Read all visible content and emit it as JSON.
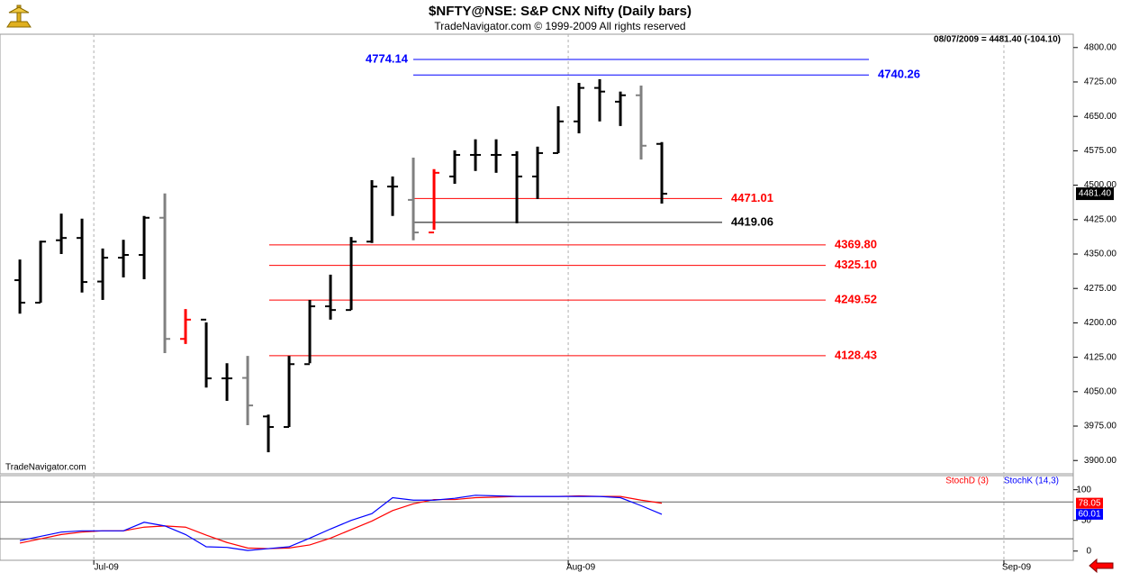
{
  "chart_data": [
    {
      "type": "ohlc",
      "title": "$NFTY@NSE:  S&P CNX Nifty  (Daily bars)",
      "subtitle": "TradeNavigator.com © 1999-2009 All rights reserved",
      "header": "08/07/2009 = 4481.40 (-104.10)",
      "watermark": "TradeNavigator.com",
      "categories": [
        null,
        null,
        null,
        null,
        null,
        null,
        null,
        null,
        null,
        null,
        null,
        null,
        null,
        null,
        null,
        null,
        null,
        null,
        null,
        null,
        null,
        null,
        null,
        null,
        null,
        null,
        null,
        null,
        null,
        null,
        null,
        null
      ],
      "open": [
        4293,
        4244,
        4380,
        4385,
        4290,
        4342,
        4348,
        4429,
        4165,
        4207,
        4079,
        4080,
        3996,
        3973,
        4110,
        4236,
        4228,
        4377,
        4497,
        4468,
        4397,
        4519,
        4566,
        4566,
        4566,
        4519,
        4570,
        4639,
        4712,
        4682,
        4696,
        4590
      ],
      "high": [
        4338,
        4379,
        4438,
        4427,
        4362,
        4381,
        4433,
        4482,
        4230,
        4201,
        4112,
        4128,
        4000,
        4128,
        4250,
        4305,
        4387,
        4511,
        4519,
        4560,
        4535,
        4576,
        4600,
        4600,
        4574,
        4584,
        4672,
        4723,
        4731,
        4704,
        4717,
        4594
      ],
      "low": [
        4220,
        4244,
        4350,
        4266,
        4250,
        4299,
        4295,
        4134,
        4154,
        4059,
        4030,
        3977,
        3918,
        3973,
        4112,
        4207,
        4228,
        4374,
        4433,
        4380,
        4403,
        4503,
        4531,
        4527,
        4417,
        4470,
        4570,
        4613,
        4639,
        4629,
        4556,
        4460
      ],
      "close": [
        4244,
        4377,
        4385,
        4289,
        4342,
        4348,
        4429,
        4165,
        4207,
        4079,
        4079,
        4020,
        3973,
        4110,
        4236,
        4228,
        4377,
        4497,
        4497,
        4397,
        4527,
        4566,
        4566,
        4566,
        4519,
        4570,
        4639,
        4712,
        4704,
        4696,
        4586,
        4481.4
      ],
      "bar_colors": [
        "#000000",
        "#000000",
        "#000000",
        "#000000",
        "#000000",
        "#000000",
        "#000000",
        "#808080",
        "#ff0000",
        "#000000",
        "#000000",
        "#808080",
        "#000000",
        "#000000",
        "#000000",
        "#000000",
        "#000000",
        "#000000",
        "#000000",
        "#808080",
        "#ff0000",
        "#000000",
        "#000000",
        "#000000",
        "#000000",
        "#000000",
        "#000000",
        "#000000",
        "#000000",
        "#000000",
        "#808080",
        "#000000"
      ],
      "last_label": "4481.40",
      "levels": [
        {
          "value": 4774.14,
          "label": "4774.14",
          "color": "#0000ff"
        },
        {
          "value": 4740.26,
          "label": "4740.26",
          "color": "#0000ff"
        },
        {
          "value": 4471.01,
          "label": "4471.01",
          "color": "#ff0000"
        },
        {
          "value": 4419.06,
          "label": "4419.06",
          "color": "#000000"
        },
        {
          "value": 4369.8,
          "label": "4369.80",
          "color": "#ff0000"
        },
        {
          "value": 4325.1,
          "label": "4325.10",
          "color": "#ff0000"
        },
        {
          "value": 4249.52,
          "label": "4249.52",
          "color": "#ff0000"
        },
        {
          "value": 4128.43,
          "label": "4128.43",
          "color": "#ff0000"
        }
      ],
      "xlim": [
        -0.96,
        50.87
      ],
      "xticks": [
        {
          "value": 3.57,
          "label": "Jul-09"
        },
        {
          "value": 26.48,
          "label": "Aug-09"
        },
        {
          "value": 47.52,
          "label": "Sep-09"
        }
      ],
      "ylim": [
        3871,
        4829
      ],
      "yticks": [
        {
          "value": 3900,
          "label": "3900.00"
        },
        {
          "value": 3975,
          "label": "3975.00"
        },
        {
          "value": 4050,
          "label": "4050.00"
        },
        {
          "value": 4125,
          "label": "4125.00"
        },
        {
          "value": 4200,
          "label": "4200.00"
        },
        {
          "value": 4275,
          "label": "4275.00"
        },
        {
          "value": 4350,
          "label": "4350.00"
        },
        {
          "value": 4425,
          "label": "4425.00"
        },
        {
          "value": 4500,
          "label": "4500.00"
        },
        {
          "value": 4575,
          "label": "4575.00"
        },
        {
          "value": 4650,
          "label": "4650.00"
        },
        {
          "value": 4725,
          "label": "4725.00"
        },
        {
          "value": 4800,
          "label": "4800.00"
        }
      ]
    },
    {
      "type": "line",
      "series": [
        {
          "name": "StochD (3)",
          "color": "#ff0000",
          "values": [
            13,
            20,
            27,
            31,
            33,
            33,
            39,
            41,
            39,
            26,
            14,
            5,
            4,
            5,
            10,
            21,
            35,
            49,
            66,
            77,
            84,
            84,
            87,
            88,
            89,
            89,
            89,
            90,
            89,
            89,
            83,
            78.05
          ]
        },
        {
          "name": "StochK (14,3)",
          "color": "#0000ff",
          "values": [
            17,
            24,
            31,
            33,
            33,
            33,
            47,
            41,
            27,
            7,
            6,
            1,
            4,
            7,
            21,
            36,
            50,
            61,
            87,
            83,
            83,
            86,
            91,
            90,
            89,
            89,
            89,
            89,
            89,
            87,
            74,
            60.01
          ]
        }
      ],
      "ylim": [
        -15,
        123
      ],
      "yticks": [
        0,
        50,
        100
      ],
      "hlines": [
        20,
        80
      ]
    }
  ]
}
